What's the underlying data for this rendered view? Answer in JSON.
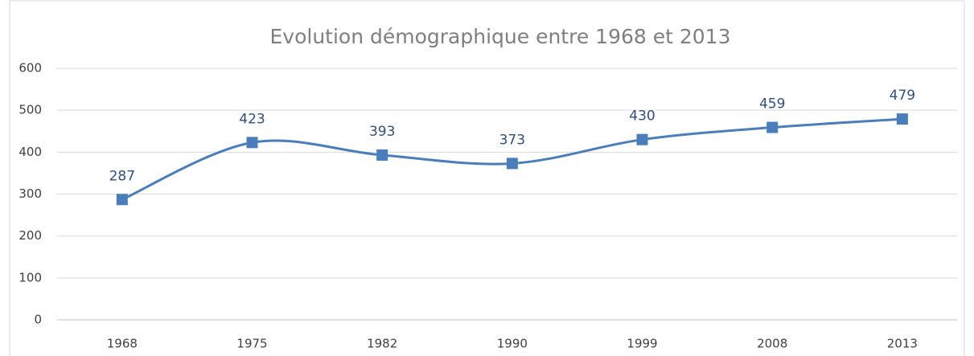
{
  "chart_data": {
    "type": "line",
    "title": "Evolution démographique entre 1968 et 2013",
    "categories": [
      "1968",
      "1975",
      "1982",
      "1990",
      "1999",
      "2008",
      "2013"
    ],
    "values": [
      287,
      423,
      393,
      373,
      430,
      459,
      479
    ],
    "color": "#4a7ebb",
    "smooth": true,
    "marker": "square",
    "ylim": [
      0,
      600
    ],
    "yticks": [
      0,
      100,
      200,
      300,
      400,
      500,
      600
    ],
    "grid": true
  }
}
